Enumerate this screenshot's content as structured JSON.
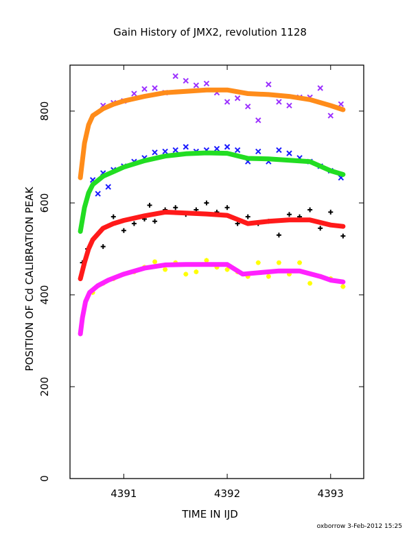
{
  "footer": "oxborrow  3-Feb-2012 15:25",
  "chart_data": {
    "type": "scatter",
    "title": "Gain History of JMX2, revolution 1128",
    "xlabel": "TIME IN IJD",
    "ylabel": "POSITION OF Cd CALIBRATION PEAK",
    "xlim": [
      4390.48,
      4393.32
    ],
    "ylim": [
      0,
      900
    ],
    "xticks": [
      4391,
      4392,
      4393
    ],
    "yticks": [
      0,
      200,
      400,
      600,
      800
    ],
    "grid": false,
    "series": [
      {
        "color": "#9b30ff",
        "marker": "x",
        "values": [
          {
            "x": 4390.8,
            "y": 812
          },
          {
            "x": 4390.9,
            "y": 818
          },
          {
            "x": 4391.0,
            "y": 822
          },
          {
            "x": 4391.1,
            "y": 838
          },
          {
            "x": 4391.2,
            "y": 848
          },
          {
            "x": 4391.3,
            "y": 850
          },
          {
            "x": 4391.4,
            "y": 840
          },
          {
            "x": 4391.5,
            "y": 876
          },
          {
            "x": 4391.6,
            "y": 866
          },
          {
            "x": 4391.7,
            "y": 856
          },
          {
            "x": 4391.8,
            "y": 860
          },
          {
            "x": 4391.9,
            "y": 840
          },
          {
            "x": 4392.0,
            "y": 820
          },
          {
            "x": 4392.1,
            "y": 828
          },
          {
            "x": 4392.2,
            "y": 810
          },
          {
            "x": 4392.3,
            "y": 780
          },
          {
            "x": 4392.4,
            "y": 858
          },
          {
            "x": 4392.5,
            "y": 820
          },
          {
            "x": 4392.6,
            "y": 812
          },
          {
            "x": 4392.7,
            "y": 830
          },
          {
            "x": 4392.8,
            "y": 830
          },
          {
            "x": 4392.9,
            "y": 850
          },
          {
            "x": 4393.0,
            "y": 790
          },
          {
            "x": 4393.1,
            "y": 815
          }
        ]
      },
      {
        "color": "#ff8c1a",
        "marker": "smooth",
        "values": [
          {
            "x": 4390.58,
            "y": 655
          },
          {
            "x": 4390.62,
            "y": 730
          },
          {
            "x": 4390.66,
            "y": 770
          },
          {
            "x": 4390.7,
            "y": 790
          },
          {
            "x": 4390.8,
            "y": 805
          },
          {
            "x": 4390.9,
            "y": 815
          },
          {
            "x": 4391.0,
            "y": 822
          },
          {
            "x": 4391.2,
            "y": 832
          },
          {
            "x": 4391.4,
            "y": 840
          },
          {
            "x": 4391.6,
            "y": 843
          },
          {
            "x": 4391.8,
            "y": 846
          },
          {
            "x": 4392.0,
            "y": 846
          },
          {
            "x": 4392.2,
            "y": 838
          },
          {
            "x": 4392.4,
            "y": 836
          },
          {
            "x": 4392.6,
            "y": 832
          },
          {
            "x": 4392.8,
            "y": 825
          },
          {
            "x": 4393.0,
            "y": 812
          },
          {
            "x": 4393.12,
            "y": 803
          }
        ]
      },
      {
        "color": "#1a1aff",
        "marker": "x",
        "values": [
          {
            "x": 4390.7,
            "y": 650
          },
          {
            "x": 4390.75,
            "y": 620
          },
          {
            "x": 4390.8,
            "y": 665
          },
          {
            "x": 4390.85,
            "y": 635
          },
          {
            "x": 4390.9,
            "y": 672
          },
          {
            "x": 4391.0,
            "y": 680
          },
          {
            "x": 4391.1,
            "y": 690
          },
          {
            "x": 4391.2,
            "y": 698
          },
          {
            "x": 4391.3,
            "y": 710
          },
          {
            "x": 4391.4,
            "y": 712
          },
          {
            "x": 4391.5,
            "y": 715
          },
          {
            "x": 4391.6,
            "y": 722
          },
          {
            "x": 4391.7,
            "y": 712
          },
          {
            "x": 4391.8,
            "y": 715
          },
          {
            "x": 4391.9,
            "y": 718
          },
          {
            "x": 4392.0,
            "y": 722
          },
          {
            "x": 4392.1,
            "y": 715
          },
          {
            "x": 4392.2,
            "y": 690
          },
          {
            "x": 4392.3,
            "y": 712
          },
          {
            "x": 4392.4,
            "y": 690
          },
          {
            "x": 4392.5,
            "y": 715
          },
          {
            "x": 4392.6,
            "y": 708
          },
          {
            "x": 4392.7,
            "y": 698
          },
          {
            "x": 4392.8,
            "y": 690
          },
          {
            "x": 4392.9,
            "y": 680
          },
          {
            "x": 4393.0,
            "y": 670
          },
          {
            "x": 4393.1,
            "y": 655
          }
        ]
      },
      {
        "color": "#22dd22",
        "marker": "smooth",
        "values": [
          {
            "x": 4390.58,
            "y": 538
          },
          {
            "x": 4390.62,
            "y": 590
          },
          {
            "x": 4390.66,
            "y": 622
          },
          {
            "x": 4390.7,
            "y": 640
          },
          {
            "x": 4390.8,
            "y": 658
          },
          {
            "x": 4390.9,
            "y": 668
          },
          {
            "x": 4391.0,
            "y": 678
          },
          {
            "x": 4391.2,
            "y": 692
          },
          {
            "x": 4391.4,
            "y": 702
          },
          {
            "x": 4391.6,
            "y": 707
          },
          {
            "x": 4391.8,
            "y": 709
          },
          {
            "x": 4392.0,
            "y": 708
          },
          {
            "x": 4392.2,
            "y": 697
          },
          {
            "x": 4392.4,
            "y": 696
          },
          {
            "x": 4392.6,
            "y": 693
          },
          {
            "x": 4392.8,
            "y": 690
          },
          {
            "x": 4393.0,
            "y": 670
          },
          {
            "x": 4393.12,
            "y": 662
          }
        ]
      },
      {
        "color": "#000000",
        "marker": "plus",
        "values": [
          {
            "x": 4390.6,
            "y": 470
          },
          {
            "x": 4390.65,
            "y": 500
          },
          {
            "x": 4390.8,
            "y": 505
          },
          {
            "x": 4390.9,
            "y": 570
          },
          {
            "x": 4391.0,
            "y": 540
          },
          {
            "x": 4391.1,
            "y": 555
          },
          {
            "x": 4391.2,
            "y": 565
          },
          {
            "x": 4391.25,
            "y": 595
          },
          {
            "x": 4391.3,
            "y": 560
          },
          {
            "x": 4391.4,
            "y": 585
          },
          {
            "x": 4391.5,
            "y": 590
          },
          {
            "x": 4391.6,
            "y": 575
          },
          {
            "x": 4391.7,
            "y": 585
          },
          {
            "x": 4391.8,
            "y": 600
          },
          {
            "x": 4391.9,
            "y": 580
          },
          {
            "x": 4392.0,
            "y": 590
          },
          {
            "x": 4392.1,
            "y": 555
          },
          {
            "x": 4392.2,
            "y": 570
          },
          {
            "x": 4392.3,
            "y": 555
          },
          {
            "x": 4392.4,
            "y": 560
          },
          {
            "x": 4392.5,
            "y": 530
          },
          {
            "x": 4392.6,
            "y": 575
          },
          {
            "x": 4392.7,
            "y": 570
          },
          {
            "x": 4392.8,
            "y": 585
          },
          {
            "x": 4392.9,
            "y": 545
          },
          {
            "x": 4393.0,
            "y": 580
          },
          {
            "x": 4393.12,
            "y": 528
          }
        ]
      },
      {
        "color": "#ff1a1a",
        "marker": "smooth",
        "values": [
          {
            "x": 4390.58,
            "y": 435
          },
          {
            "x": 4390.62,
            "y": 470
          },
          {
            "x": 4390.66,
            "y": 500
          },
          {
            "x": 4390.7,
            "y": 520
          },
          {
            "x": 4390.8,
            "y": 545
          },
          {
            "x": 4390.9,
            "y": 555
          },
          {
            "x": 4391.0,
            "y": 562
          },
          {
            "x": 4391.2,
            "y": 572
          },
          {
            "x": 4391.4,
            "y": 580
          },
          {
            "x": 4391.6,
            "y": 578
          },
          {
            "x": 4391.8,
            "y": 576
          },
          {
            "x": 4392.0,
            "y": 573
          },
          {
            "x": 4392.2,
            "y": 555
          },
          {
            "x": 4392.4,
            "y": 560
          },
          {
            "x": 4392.6,
            "y": 563
          },
          {
            "x": 4392.8,
            "y": 563
          },
          {
            "x": 4393.0,
            "y": 552
          },
          {
            "x": 4393.12,
            "y": 549
          }
        ]
      },
      {
        "color": "#ffff00",
        "marker": "star",
        "values": [
          {
            "x": 4390.7,
            "y": 405
          },
          {
            "x": 4390.8,
            "y": 425
          },
          {
            "x": 4390.9,
            "y": 435
          },
          {
            "x": 4391.0,
            "y": 445
          },
          {
            "x": 4391.1,
            "y": 450
          },
          {
            "x": 4391.2,
            "y": 460
          },
          {
            "x": 4391.3,
            "y": 472
          },
          {
            "x": 4391.4,
            "y": 455
          },
          {
            "x": 4391.5,
            "y": 470
          },
          {
            "x": 4391.6,
            "y": 445
          },
          {
            "x": 4391.7,
            "y": 450
          },
          {
            "x": 4391.8,
            "y": 475
          },
          {
            "x": 4391.9,
            "y": 460
          },
          {
            "x": 4392.0,
            "y": 455
          },
          {
            "x": 4392.1,
            "y": 450
          },
          {
            "x": 4392.2,
            "y": 440
          },
          {
            "x": 4392.3,
            "y": 470
          },
          {
            "x": 4392.4,
            "y": 440
          },
          {
            "x": 4392.5,
            "y": 470
          },
          {
            "x": 4392.6,
            "y": 445
          },
          {
            "x": 4392.7,
            "y": 470
          },
          {
            "x": 4392.8,
            "y": 425
          },
          {
            "x": 4392.9,
            "y": 440
          },
          {
            "x": 4393.0,
            "y": 435
          },
          {
            "x": 4393.12,
            "y": 418
          }
        ]
      },
      {
        "color": "#ff22ff",
        "marker": "smooth",
        "values": [
          {
            "x": 4390.58,
            "y": 315
          },
          {
            "x": 4390.6,
            "y": 350
          },
          {
            "x": 4390.63,
            "y": 385
          },
          {
            "x": 4390.67,
            "y": 405
          },
          {
            "x": 4390.75,
            "y": 420
          },
          {
            "x": 4390.85,
            "y": 432
          },
          {
            "x": 4391.0,
            "y": 445
          },
          {
            "x": 4391.2,
            "y": 458
          },
          {
            "x": 4391.4,
            "y": 465
          },
          {
            "x": 4391.6,
            "y": 466
          },
          {
            "x": 4391.8,
            "y": 466
          },
          {
            "x": 4392.0,
            "y": 466
          },
          {
            "x": 4392.15,
            "y": 445
          },
          {
            "x": 4392.3,
            "y": 448
          },
          {
            "x": 4392.5,
            "y": 452
          },
          {
            "x": 4392.7,
            "y": 452
          },
          {
            "x": 4392.9,
            "y": 440
          },
          {
            "x": 4393.0,
            "y": 432
          },
          {
            "x": 4393.12,
            "y": 428
          }
        ]
      }
    ]
  }
}
